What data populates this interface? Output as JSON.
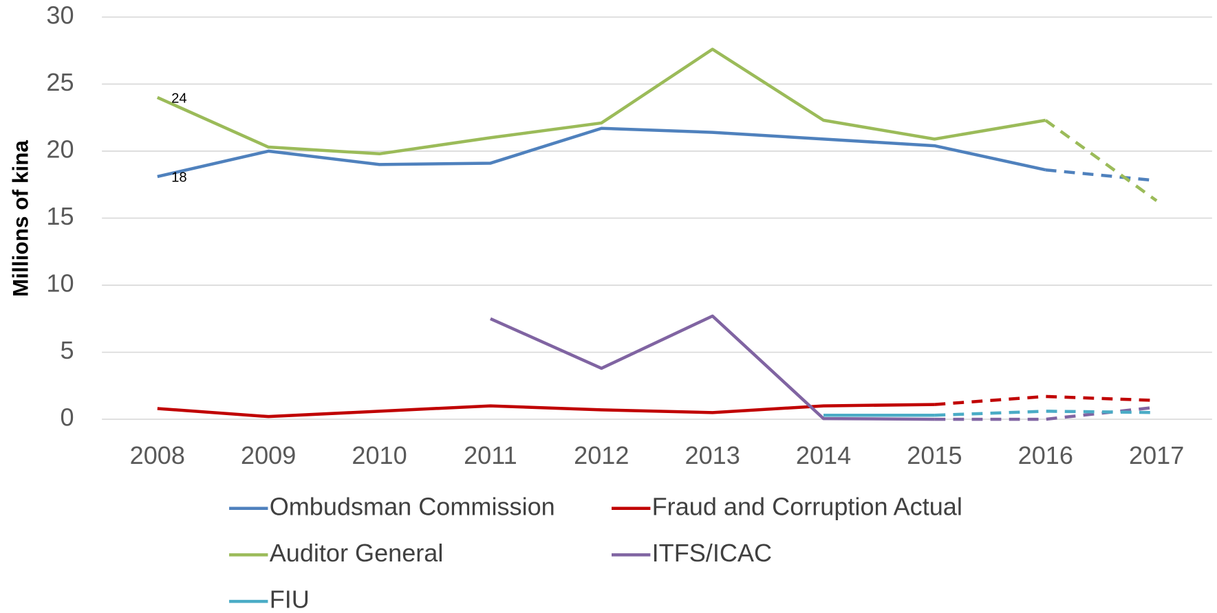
{
  "chart_data": {
    "type": "line",
    "y_label": "Millions of kina",
    "categories": [
      "2008",
      "2009",
      "2010",
      "2011",
      "2012",
      "2013",
      "2014",
      "2015",
      "2016",
      "2017"
    ],
    "ylim": [
      0,
      30
    ],
    "yticks": [
      0,
      5,
      10,
      15,
      20,
      25,
      30
    ],
    "grid": true,
    "legend": "bottom",
    "series": [
      {
        "name": "Ombudsman Commission",
        "color": "#4f81bd",
        "dashed_from": "2016",
        "values": [
          18.1,
          20.0,
          19.0,
          19.1,
          21.7,
          21.4,
          20.9,
          20.4,
          18.6,
          17.8
        ],
        "value_labels": [
          "18",
          null,
          null,
          null,
          null,
          null,
          null,
          null,
          null,
          null
        ]
      },
      {
        "name": "Fraud and Corruption Actual",
        "color": "#c00000",
        "dashed_from": "2015",
        "values": [
          0.8,
          0.2,
          0.6,
          1.0,
          0.7,
          0.5,
          1.0,
          1.1,
          1.7,
          1.4
        ]
      },
      {
        "name": "Auditor General",
        "color": "#9bbb59",
        "dashed_from": "2016",
        "values": [
          24.0,
          20.3,
          19.8,
          21.0,
          22.1,
          27.6,
          22.3,
          20.9,
          22.3,
          16.3
        ],
        "value_labels": [
          "24",
          null,
          null,
          null,
          null,
          null,
          null,
          null,
          null,
          null
        ]
      },
      {
        "name": "ITFS/ICAC",
        "color": "#8064a2",
        "dashed_from": "2015",
        "values": [
          null,
          null,
          null,
          7.5,
          3.8,
          7.7,
          0.05,
          0,
          0,
          0.9
        ]
      },
      {
        "name": "FIU",
        "color": "#4bacc6",
        "dashed_from": "2015",
        "values": [
          null,
          null,
          null,
          null,
          null,
          null,
          0.3,
          0.3,
          0.6,
          0.5
        ]
      }
    ]
  }
}
